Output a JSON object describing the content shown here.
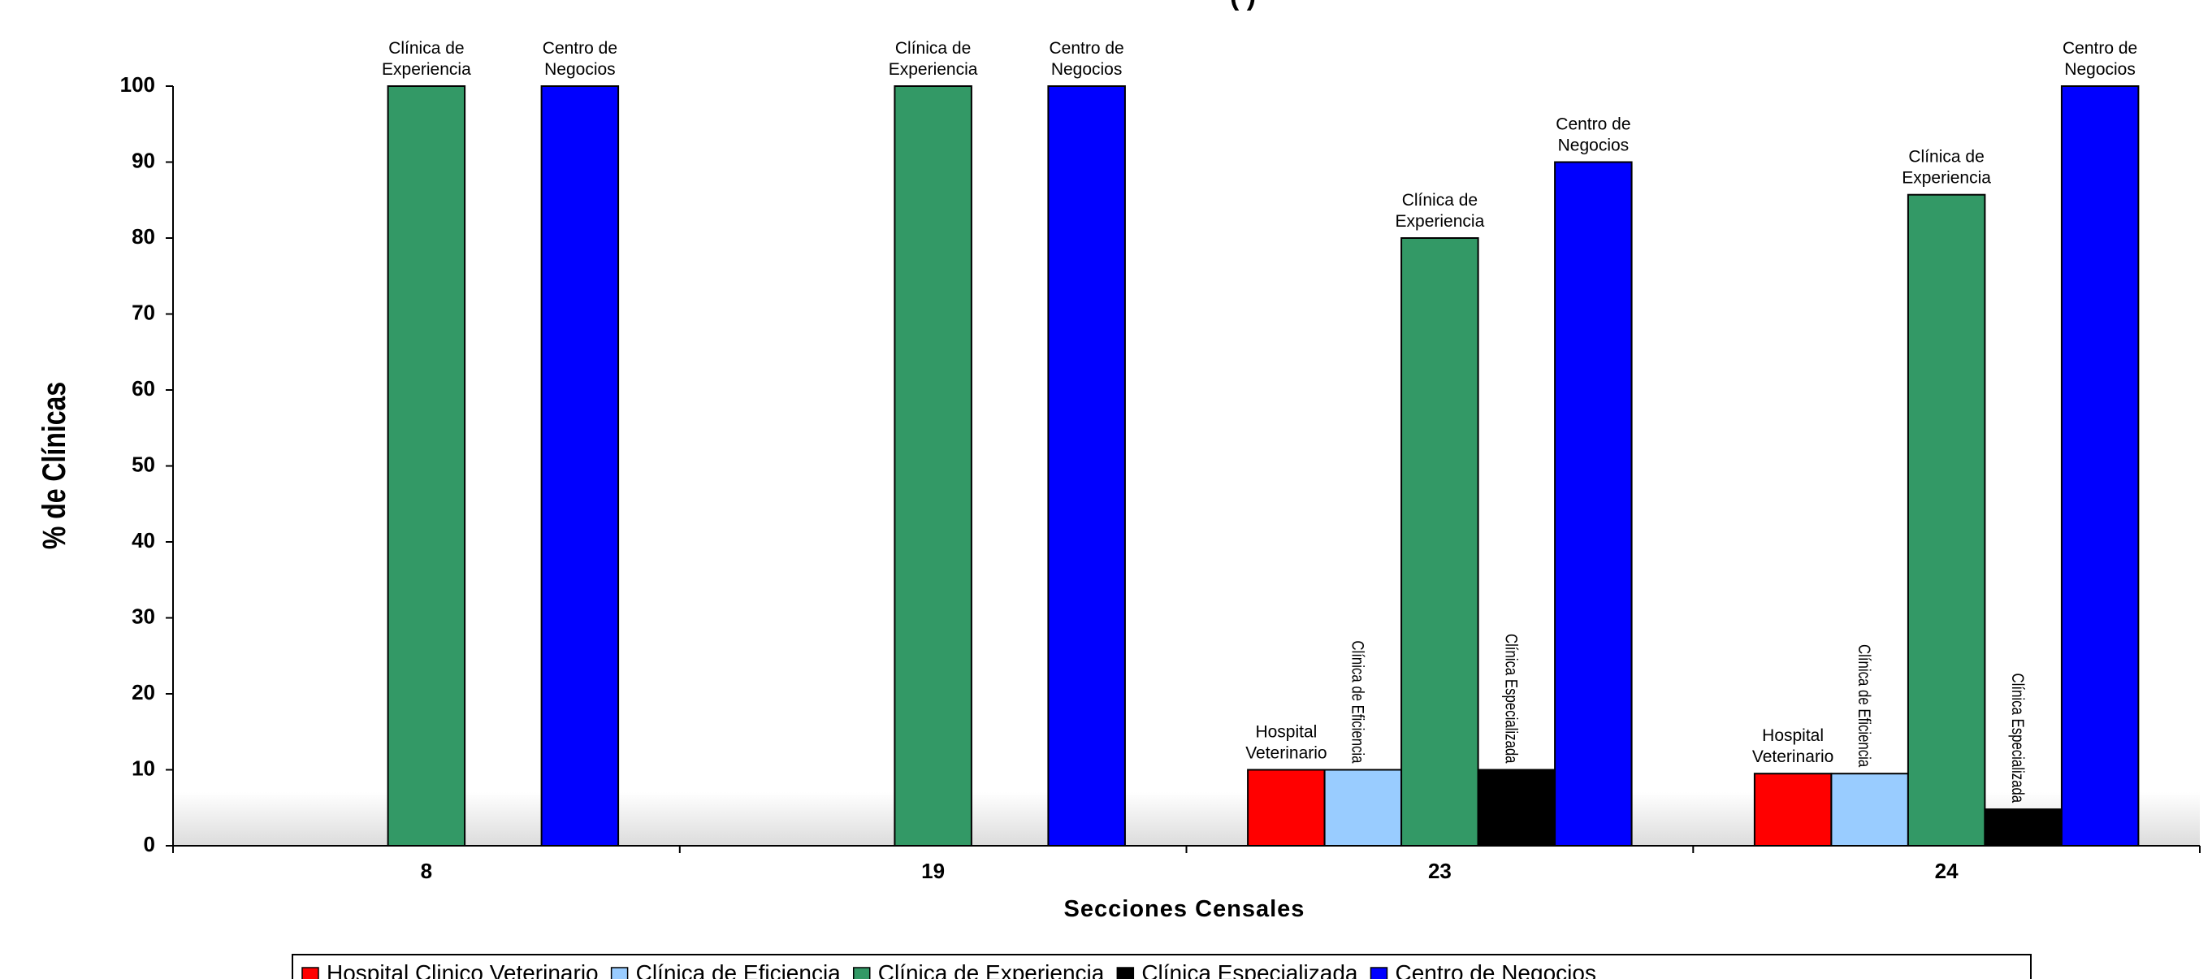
{
  "chart_data": {
    "type": "bar",
    "title_fragment": "(          )",
    "xlabel": "Secciones Censales",
    "ylabel": "% de Clínicas",
    "ylim": [
      0,
      100
    ],
    "yticks": [
      0,
      10,
      20,
      30,
      40,
      50,
      60,
      70,
      80,
      90,
      100
    ],
    "categories": [
      "8",
      "19",
      "23",
      "24"
    ],
    "grid": false,
    "legend_position": "bottom",
    "series": [
      {
        "name": "Hospital Clinico Veterinario",
        "color": "#ff0000",
        "values": [
          0,
          0,
          10,
          9.5
        ]
      },
      {
        "name": "Clínica de Eficiencia",
        "color": "#99ccff",
        "values": [
          0,
          0,
          10,
          9.5
        ]
      },
      {
        "name": "Clínica de Experiencia",
        "color": "#339966",
        "values": [
          100,
          100,
          80,
          85.7
        ]
      },
      {
        "name": "Clínica Especializada",
        "color": "#000000",
        "values": [
          0,
          0,
          10,
          4.8
        ]
      },
      {
        "name": "Centro de Negocios",
        "color": "#0000ff",
        "values": [
          100,
          100,
          90,
          100
        ]
      }
    ],
    "bar_labels": [
      {
        "category": "8",
        "series": 2,
        "lines": [
          "Clínica de",
          "Experiencia"
        ],
        "rotated": false
      },
      {
        "category": "8",
        "series": 4,
        "lines": [
          "Centro de",
          "Negocios"
        ],
        "rotated": false
      },
      {
        "category": "19",
        "series": 2,
        "lines": [
          "Clínica de",
          "Experiencia"
        ],
        "rotated": false
      },
      {
        "category": "19",
        "series": 4,
        "lines": [
          "Centro de",
          "Negocios"
        ],
        "rotated": false
      },
      {
        "category": "23",
        "series": 0,
        "lines": [
          "Hospital",
          "Veterinario"
        ],
        "rotated": false
      },
      {
        "category": "23",
        "series": 1,
        "lines": [
          "Clínica de Eficiencia"
        ],
        "rotated": true
      },
      {
        "category": "23",
        "series": 2,
        "lines": [
          "Clínica de",
          "Experiencia"
        ],
        "rotated": false
      },
      {
        "category": "23",
        "series": 3,
        "lines": [
          "Clínica Especializada"
        ],
        "rotated": true
      },
      {
        "category": "23",
        "series": 4,
        "lines": [
          "Centro de",
          "Negocios"
        ],
        "rotated": false
      },
      {
        "category": "24",
        "series": 0,
        "lines": [
          "Hospital",
          "Veterinario"
        ],
        "rotated": false
      },
      {
        "category": "24",
        "series": 1,
        "lines": [
          "Clínica de Eficiencia"
        ],
        "rotated": true
      },
      {
        "category": "24",
        "series": 2,
        "lines": [
          "Clínica de",
          "Experiencia"
        ],
        "rotated": false
      },
      {
        "category": "24",
        "series": 3,
        "lines": [
          "Clínica Especializada"
        ],
        "rotated": true
      },
      {
        "category": "24",
        "series": 4,
        "lines": [
          "Centro de",
          "Negocios"
        ],
        "rotated": false
      }
    ]
  }
}
